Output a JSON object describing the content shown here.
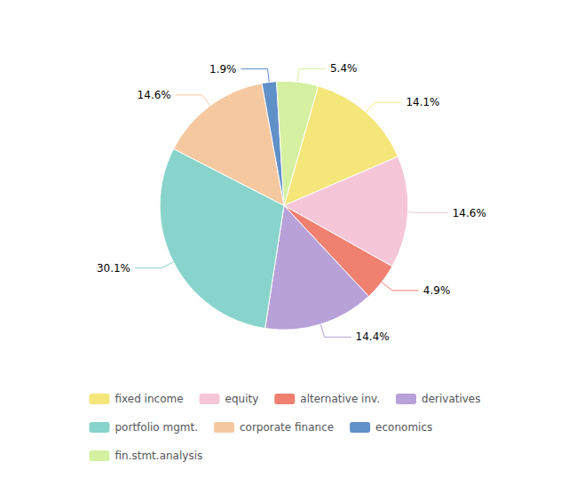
{
  "chart_data": {
    "type": "pie",
    "categories": [
      "fixed income",
      "equity",
      "alternative inv.",
      "derivatives",
      "portfolio mgmt.",
      "corporate finance",
      "economics",
      "fin.stmt.analysis"
    ],
    "values": [
      14.1,
      14.6,
      4.9,
      14.4,
      30.1,
      14.6,
      1.9,
      5.4
    ],
    "value_labels": [
      "14.1%",
      "14.6%",
      "4.9%",
      "14.4%",
      "30.1%",
      "14.6%",
      "1.9%",
      "5.4%"
    ],
    "colors": [
      "#f5e67a",
      "#f5c6d8",
      "#f08070",
      "#b8a0d8",
      "#88d4cc",
      "#f5c8a0",
      "#6090c8",
      "#d4f0a0"
    ],
    "data_labels": true,
    "legend": "bottom"
  }
}
